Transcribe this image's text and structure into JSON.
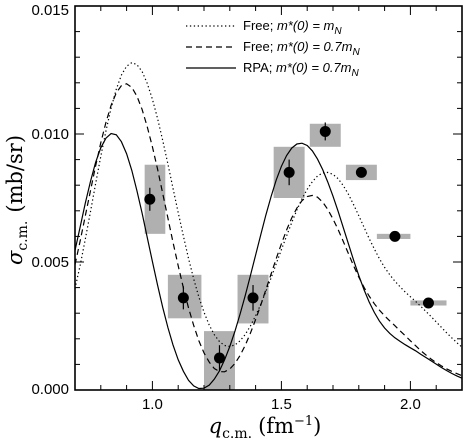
{
  "chart_data": {
    "type": "line",
    "xlabel": "q",
    "xlabel_sub": "c.m.",
    "xlabel_unit": "(fm",
    "xlabel_unit_sup": "−1",
    "xlabel_unit_close": ")",
    "ylabel": "σ",
    "ylabel_sub": "c.m.",
    "ylabel_unit": "(mb/sr)",
    "xlim": [
      0.7,
      2.2
    ],
    "ylim": [
      0.0,
      0.015
    ],
    "x_ticks": [
      "1.0",
      "1.5",
      "2.0"
    ],
    "x_tick_values": [
      1.0,
      1.5,
      2.0
    ],
    "y_ticks": [
      "0.000",
      "0.005",
      "0.010",
      "0.015"
    ],
    "y_tick_values": [
      0.0,
      0.005,
      0.01,
      0.015
    ],
    "grid": false,
    "legend_position": "top-right",
    "legend": [
      {
        "prefix": "Free; ",
        "formula": "m*(0) = m",
        "formula_sub": "N",
        "style": "dotted"
      },
      {
        "prefix": "Free; ",
        "formula": "m*(0) = 0.7m",
        "formula_sub": "N",
        "style": "dashed"
      },
      {
        "prefix": "RPA; ",
        "formula": "m*(0) = 0.7m",
        "formula_sub": "N",
        "style": "solid"
      }
    ],
    "series": [
      {
        "style": "dotted",
        "x": [
          0.7,
          0.72,
          0.74,
          0.76,
          0.78,
          0.8,
          0.82,
          0.84,
          0.86,
          0.88,
          0.9,
          0.92,
          0.94,
          0.96,
          0.98,
          1.0,
          1.02,
          1.04,
          1.06,
          1.08,
          1.1,
          1.12,
          1.14,
          1.16,
          1.18,
          1.2,
          1.22,
          1.24,
          1.26,
          1.28,
          1.3,
          1.32,
          1.34,
          1.36,
          1.38,
          1.4,
          1.42,
          1.44,
          1.46,
          1.48,
          1.5,
          1.52,
          1.54,
          1.56,
          1.58,
          1.6,
          1.62,
          1.64,
          1.66,
          1.68,
          1.7,
          1.72,
          1.74,
          1.76,
          1.78,
          1.8,
          1.82,
          1.84,
          1.86,
          1.88,
          1.9,
          1.92,
          1.94,
          1.96,
          1.98,
          2.0,
          2.02,
          2.04,
          2.06,
          2.08,
          2.1,
          2.12,
          2.14,
          2.16,
          2.18,
          2.2
        ],
        "y": [
          0.00396,
          0.00488,
          0.00589,
          0.00697,
          0.00806,
          0.00913,
          0.01013,
          0.01101,
          0.01175,
          0.0123,
          0.01265,
          0.01279,
          0.01271,
          0.01244,
          0.01198,
          0.01136,
          0.0106,
          0.00975,
          0.00883,
          0.00788,
          0.00693,
          0.00601,
          0.00514,
          0.00434,
          0.00364,
          0.00304,
          0.00254,
          0.00216,
          0.00189,
          0.00174,
          0.0017,
          0.00176,
          0.00192,
          0.00217,
          0.0025,
          0.0029,
          0.00335,
          0.00385,
          0.00438,
          0.00493,
          0.00548,
          0.00602,
          0.00654,
          0.00703,
          0.00747,
          0.00784,
          0.00814,
          0.00836,
          0.00848,
          0.0085,
          0.00842,
          0.00825,
          0.00798,
          0.00764,
          0.00724,
          0.00681,
          0.00636,
          0.00592,
          0.00551,
          0.00513,
          0.00479,
          0.0045,
          0.00425,
          0.00403,
          0.00383,
          0.00364,
          0.00346,
          0.00327,
          0.00307,
          0.00287,
          0.00266,
          0.00245,
          0.00224,
          0.00204,
          0.00185,
          0.00167
        ]
      },
      {
        "style": "dashed",
        "x": [
          0.7,
          0.72,
          0.74,
          0.76,
          0.78,
          0.8,
          0.82,
          0.84,
          0.86,
          0.88,
          0.9,
          0.92,
          0.94,
          0.96,
          0.98,
          1.0,
          1.02,
          1.04,
          1.06,
          1.08,
          1.1,
          1.12,
          1.14,
          1.16,
          1.18,
          1.2,
          1.22,
          1.24,
          1.26,
          1.28,
          1.3,
          1.32,
          1.34,
          1.36,
          1.38,
          1.4,
          1.42,
          1.44,
          1.46,
          1.48,
          1.5,
          1.52,
          1.54,
          1.56,
          1.58,
          1.6,
          1.62,
          1.64,
          1.66,
          1.68,
          1.7,
          1.72,
          1.74,
          1.76,
          1.78,
          1.8,
          1.82,
          1.84,
          1.86,
          1.88,
          1.9,
          1.92,
          1.94,
          1.96,
          1.98,
          2.0,
          2.02,
          2.04,
          2.06,
          2.08,
          2.1,
          2.12,
          2.14,
          2.16,
          2.18,
          2.2
        ],
        "y": [
          0.0049,
          0.00583,
          0.0068,
          0.00779,
          0.00875,
          0.00966,
          0.01046,
          0.01112,
          0.01161,
          0.01189,
          0.01196,
          0.01182,
          0.01148,
          0.01096,
          0.01029,
          0.0095,
          0.00862,
          0.00768,
          0.00672,
          0.00577,
          0.00485,
          0.00399,
          0.00321,
          0.00252,
          0.00193,
          0.00145,
          0.00109,
          0.00084,
          0.00072,
          0.00071,
          0.00082,
          0.00104,
          0.00135,
          0.00175,
          0.00222,
          0.00275,
          0.00332,
          0.00392,
          0.00453,
          0.00513,
          0.00571,
          0.00625,
          0.00672,
          0.00711,
          0.0074,
          0.00756,
          0.0076,
          0.00753,
          0.00734,
          0.00705,
          0.00668,
          0.00626,
          0.0058,
          0.00532,
          0.00485,
          0.00441,
          0.00401,
          0.00367,
          0.00337,
          0.00312,
          0.0029,
          0.0027,
          0.00251,
          0.00231,
          0.00212,
          0.00192,
          0.00173,
          0.00154,
          0.00137,
          0.00121,
          0.00107,
          0.00094,
          0.00083,
          0.00073,
          0.00064,
          0.00056
        ]
      },
      {
        "style": "solid",
        "x": [
          0.7,
          0.72,
          0.74,
          0.76,
          0.78,
          0.8,
          0.82,
          0.84,
          0.86,
          0.88,
          0.9,
          0.92,
          0.94,
          0.96,
          0.98,
          1.0,
          1.02,
          1.04,
          1.06,
          1.08,
          1.1,
          1.12,
          1.14,
          1.16,
          1.18,
          1.2,
          1.22,
          1.24,
          1.26,
          1.28,
          1.3,
          1.32,
          1.34,
          1.36,
          1.38,
          1.4,
          1.42,
          1.44,
          1.46,
          1.48,
          1.5,
          1.52,
          1.54,
          1.56,
          1.58,
          1.6,
          1.62,
          1.64,
          1.66,
          1.68,
          1.7,
          1.72,
          1.74,
          1.76,
          1.78,
          1.8,
          1.82,
          1.84,
          1.86,
          1.88,
          1.9,
          1.92,
          1.94,
          1.96,
          1.98,
          2.0,
          2.02,
          2.04,
          2.06,
          2.08,
          2.1,
          2.12,
          2.14,
          2.16,
          2.18,
          2.2
        ],
        "y": [
          0.00545,
          0.00638,
          0.0073,
          0.00815,
          0.00889,
          0.00946,
          0.00984,
          0.01002,
          0.00997,
          0.0097,
          0.00923,
          0.00858,
          0.00779,
          0.00691,
          0.00597,
          0.00502,
          0.00409,
          0.00323,
          0.00244,
          0.00176,
          0.00118,
          0.00073,
          0.00038,
          0.00016,
          6e-05,
          7e-05,
          0.00019,
          0.00042,
          0.00075,
          0.00118,
          0.0017,
          0.0023,
          0.00297,
          0.0037,
          0.00447,
          0.00527,
          0.00607,
          0.00684,
          0.00756,
          0.0082,
          0.00874,
          0.00916,
          0.00945,
          0.00961,
          0.00964,
          0.00955,
          0.00934,
          0.00902,
          0.00861,
          0.00812,
          0.00757,
          0.00697,
          0.00634,
          0.0057,
          0.00507,
          0.00447,
          0.00392,
          0.00344,
          0.00303,
          0.00269,
          0.00242,
          0.00221,
          0.00204,
          0.0019,
          0.00177,
          0.00165,
          0.00153,
          0.0014,
          0.00127,
          0.00114,
          0.00101,
          0.00088,
          0.00076,
          0.00065,
          0.00055,
          0.00046
        ]
      }
    ],
    "data_points": [
      {
        "x": 0.99,
        "y": 0.00745,
        "err_y": 0.00045,
        "box_x": [
          0.97,
          1.05
        ],
        "box_y": [
          0.0061,
          0.0088
        ]
      },
      {
        "x": 1.12,
        "y": 0.0036,
        "err_y": 0.00045,
        "box_x": [
          1.06,
          1.19
        ],
        "box_y": [
          0.0028,
          0.0045
        ]
      },
      {
        "x": 1.26,
        "y": 0.00125,
        "err_y": 0.0005,
        "box_x": [
          1.2,
          1.32
        ],
        "box_y": [
          0.0,
          0.0023
        ]
      },
      {
        "x": 1.39,
        "y": 0.0036,
        "err_y": 0.0005,
        "box_x": [
          1.33,
          1.45
        ],
        "box_y": [
          0.0026,
          0.0045
        ]
      },
      {
        "x": 1.53,
        "y": 0.0085,
        "err_y": 0.0005,
        "box_x": [
          1.47,
          1.59
        ],
        "box_y": [
          0.0075,
          0.0095
        ]
      },
      {
        "x": 1.67,
        "y": 0.0101,
        "err_y": 0.00035,
        "box_x": [
          1.61,
          1.73
        ],
        "box_y": [
          0.0095,
          0.0104
        ]
      },
      {
        "x": 1.81,
        "y": 0.0085,
        "err_y": 0.0002,
        "box_x": [
          1.75,
          1.87
        ],
        "box_y": [
          0.0082,
          0.0088
        ]
      },
      {
        "x": 1.94,
        "y": 0.006,
        "err_y": 0.0001,
        "box_x": [
          1.87,
          2.0
        ],
        "box_y": [
          0.0059,
          0.0061
        ]
      },
      {
        "x": 2.07,
        "y": 0.0034,
        "err_y": 0.0001,
        "box_x": [
          2.0,
          2.14
        ],
        "box_y": [
          0.0033,
          0.0035
        ]
      }
    ],
    "colors": {
      "uncertainty_box": "#b0b0b0",
      "lines": "#000000",
      "markers": "#000000"
    }
  }
}
